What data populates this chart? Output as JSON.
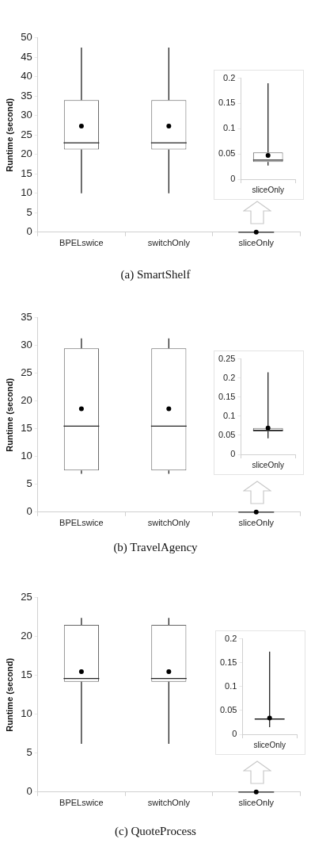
{
  "chart_data": [
    {
      "type": "box",
      "title": "(a) SmartShelf",
      "ylabel": "Runtime (second)",
      "categories": [
        "BPELswice",
        "switchOnly",
        "sliceOnly"
      ],
      "ylim": [
        0,
        50
      ],
      "yticks": [
        0,
        5,
        10,
        15,
        20,
        25,
        30,
        35,
        40,
        45,
        50
      ],
      "grid": false,
      "boxes": [
        {
          "low": 10,
          "q1": 21.3,
          "median": 23,
          "q3": 34,
          "high": 47.5,
          "mean": 27.3
        },
        {
          "low": 10,
          "q1": 21.3,
          "median": 23,
          "q3": 34,
          "high": 47.5,
          "mean": 27.3
        },
        {
          "low": 0,
          "q1": 0,
          "median": 0,
          "q3": 0,
          "high": 0,
          "mean": 0
        }
      ]
    },
    {
      "type": "box",
      "categories": [
        "sliceOnly"
      ],
      "ylim": [
        0,
        0.2
      ],
      "yticks": [
        0,
        0.05,
        0.1,
        0.15,
        0.2
      ],
      "grid": false,
      "boxes": [
        {
          "low": 0.027,
          "q1": 0.034,
          "median": 0.038,
          "q3": 0.053,
          "high": 0.19,
          "mean": 0.047
        }
      ]
    },
    {
      "type": "box",
      "title": "(b) TravelAgency",
      "ylabel": "Runtime (second)",
      "categories": [
        "BPELswice",
        "switchOnly",
        "sliceOnly"
      ],
      "ylim": [
        0,
        35
      ],
      "yticks": [
        0,
        5,
        10,
        15,
        20,
        25,
        30,
        35
      ],
      "grid": false,
      "boxes": [
        {
          "low": 6.9,
          "q1": 7.5,
          "median": 15.5,
          "q3": 29.5,
          "high": 31.3,
          "mean": 18.6
        },
        {
          "low": 6.9,
          "q1": 7.5,
          "median": 15.5,
          "q3": 29.5,
          "high": 31.3,
          "mean": 18.6
        },
        {
          "low": 0,
          "q1": 0,
          "median": 0,
          "q3": 0,
          "high": 0,
          "mean": 0
        }
      ]
    },
    {
      "type": "box",
      "categories": [
        "sliceOnly"
      ],
      "ylim": [
        0,
        0.25
      ],
      "yticks": [
        0,
        0.05,
        0.1,
        0.15,
        0.2,
        0.25
      ],
      "grid": false,
      "boxes": [
        {
          "low": 0.042,
          "q1": 0.06,
          "median": 0.063,
          "q3": 0.069,
          "high": 0.215,
          "mean": 0.069
        }
      ]
    },
    {
      "type": "box",
      "title": "(c) QuoteProcess",
      "ylabel": "Runtime (second)",
      "categories": [
        "BPELswice",
        "switchOnly",
        "sliceOnly"
      ],
      "ylim": [
        0,
        25
      ],
      "yticks": [
        0,
        5,
        10,
        15,
        20,
        25
      ],
      "grid": false,
      "boxes": [
        {
          "low": 6.2,
          "q1": 14.2,
          "median": 14.6,
          "q3": 21.5,
          "high": 22.4,
          "mean": 15.5
        },
        {
          "low": 6.2,
          "q1": 14.2,
          "median": 14.6,
          "q3": 21.5,
          "high": 22.4,
          "mean": 15.5
        },
        {
          "low": 0,
          "q1": 0,
          "median": 0,
          "q3": 0,
          "high": 0,
          "mean": 0
        }
      ]
    },
    {
      "type": "box",
      "categories": [
        "sliceOnly"
      ],
      "ylim": [
        0,
        0.2
      ],
      "yticks": [
        0,
        0.05,
        0.1,
        0.15,
        0.2
      ],
      "grid": false,
      "boxes": [
        {
          "low": 0.015,
          "q1": 0.031,
          "median": 0.032,
          "q3": 0.033,
          "high": 0.173,
          "mean": 0.034
        }
      ]
    }
  ]
}
